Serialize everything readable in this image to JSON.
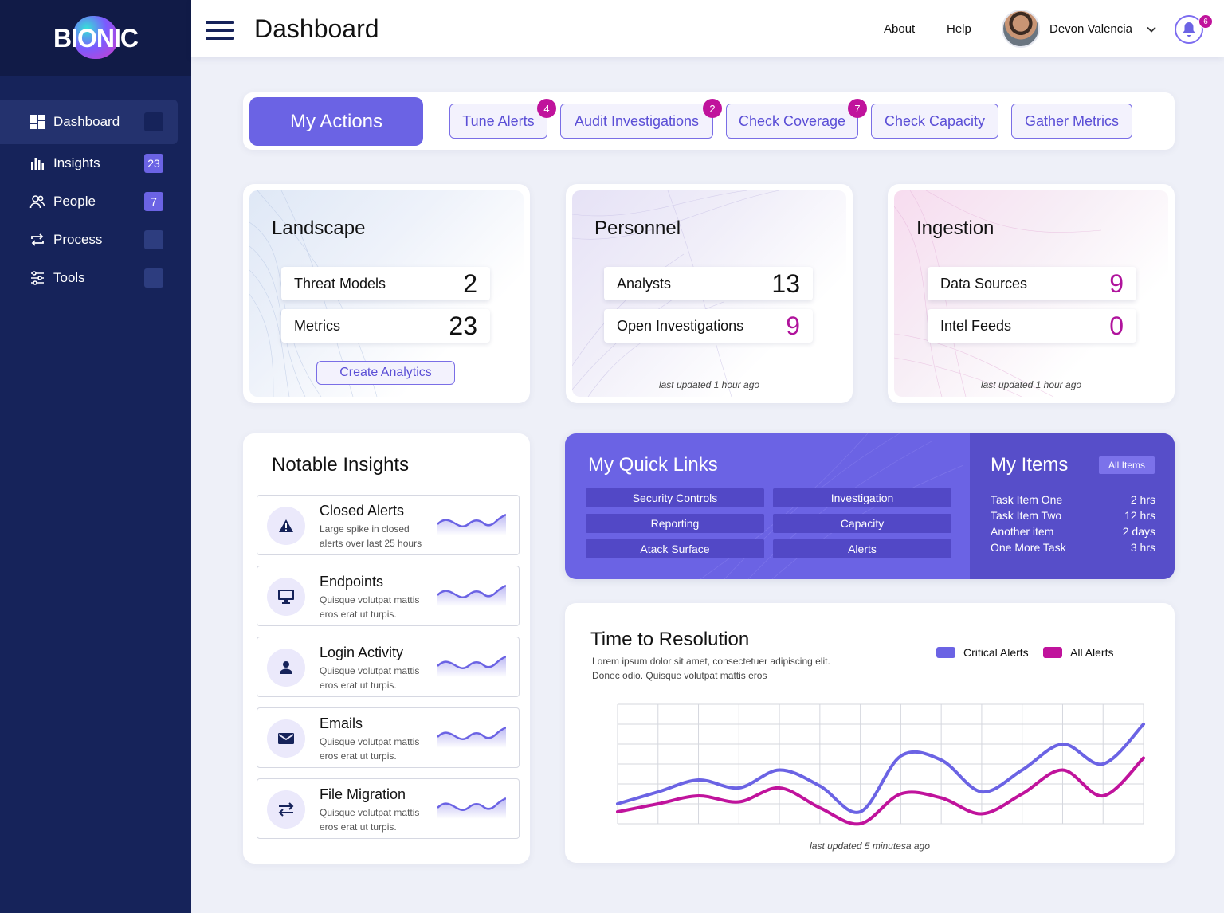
{
  "brand": {
    "logo_text": "BIONIC"
  },
  "sidebar": {
    "items": [
      {
        "label": "Dashboard",
        "icon": "dashboard-icon",
        "badge": ""
      },
      {
        "label": "Insights",
        "icon": "bar-chart-icon",
        "badge": "23"
      },
      {
        "label": "People",
        "icon": "people-icon",
        "badge": "7"
      },
      {
        "label": "Process",
        "icon": "repeat-icon",
        "badge": ""
      },
      {
        "label": "Tools",
        "icon": "sliders-icon",
        "badge": ""
      }
    ]
  },
  "header": {
    "title": "Dashboard",
    "about": "About",
    "help": "Help",
    "user_name": "Devon Valencia",
    "notification_count": "6"
  },
  "actions": {
    "title": "My Actions",
    "buttons": [
      {
        "label": "Tune Alerts",
        "badge": "4"
      },
      {
        "label": "Audit Investigations",
        "badge": "2"
      },
      {
        "label": "Check Coverage",
        "badge": "7"
      },
      {
        "label": "Check Capacity",
        "badge": ""
      },
      {
        "label": "Gather Metrics",
        "badge": ""
      }
    ]
  },
  "landscape": {
    "title": "Landscape",
    "rows": [
      {
        "label": "Threat Models",
        "value": "2"
      },
      {
        "label": "Metrics",
        "value": "23"
      }
    ],
    "button": "Create Analytics"
  },
  "personnel": {
    "title": "Personnel",
    "rows": [
      {
        "label": "Analysts",
        "value": "13"
      },
      {
        "label": "Open Investigations",
        "value": "9"
      }
    ],
    "updated": "last updated 1 hour ago"
  },
  "ingestion": {
    "title": "Ingestion",
    "rows": [
      {
        "label": "Data Sources",
        "value": "9"
      },
      {
        "label": "Intel Feeds",
        "value": "0"
      }
    ],
    "updated": "last updated 1 hour ago"
  },
  "insights": {
    "title": "Notable Insights",
    "items": [
      {
        "name": "Closed Alerts",
        "desc": "Large spike in closed alerts over last 25 hours",
        "icon": "warning-icon"
      },
      {
        "name": "Endpoints",
        "desc": "Quisque volutpat mattis eros erat ut turpis.",
        "icon": "monitor-icon"
      },
      {
        "name": "Login Activity",
        "desc": "Quisque volutpat mattis eros erat ut turpis.",
        "icon": "user-icon"
      },
      {
        "name": "Emails",
        "desc": "Quisque volutpat mattis eros erat ut turpis.",
        "icon": "mail-icon"
      },
      {
        "name": "File Migration",
        "desc": "Quisque volutpat mattis eros erat ut turpis.",
        "icon": "transfer-icon"
      }
    ]
  },
  "quick_links": {
    "title": "My Quick Links",
    "links": [
      "Security Controls",
      "Investigation",
      "Reporting",
      "Capacity",
      "Atack Surface",
      "Alerts"
    ]
  },
  "my_items": {
    "title": "My Items",
    "all_label": "All Items",
    "items": [
      {
        "name": "Task Item One",
        "time": "2 hrs"
      },
      {
        "name": "Task Item Two",
        "time": "12 hrs"
      },
      {
        "name": "Another item",
        "time": "2 days"
      },
      {
        "name": "One More Task",
        "time": "3 hrs"
      }
    ]
  },
  "resolution": {
    "title": "Time to Resolution",
    "desc": "Lorem ipsum dolor sit amet, consectetuer adipiscing elit. Donec odio. Quisque volutpat mattis eros",
    "updated": "last updated 5 minutesa ago"
  },
  "chart_data": {
    "type": "line",
    "title": "Time to Resolution",
    "x": [
      0,
      1,
      2,
      3,
      4,
      5,
      6,
      7,
      8,
      9,
      10,
      11,
      12,
      13
    ],
    "ylim": [
      0,
      6
    ],
    "grid": true,
    "series": [
      {
        "name": "Critical Alerts",
        "color": "#6b63e4",
        "values": [
          1.0,
          1.6,
          2.2,
          1.8,
          2.7,
          1.9,
          0.6,
          3.4,
          3.2,
          1.6,
          2.7,
          4.0,
          3.0,
          5.0
        ]
      },
      {
        "name": "All Alerts",
        "color": "#c0139c",
        "values": [
          0.6,
          1.0,
          1.4,
          1.1,
          1.8,
          0.8,
          0.0,
          1.5,
          1.3,
          0.5,
          1.5,
          2.7,
          1.4,
          3.3
        ]
      }
    ]
  },
  "colors": {
    "accent": "#6b63e4",
    "brand_dark": "#16235a",
    "pink": "#c0139c"
  }
}
